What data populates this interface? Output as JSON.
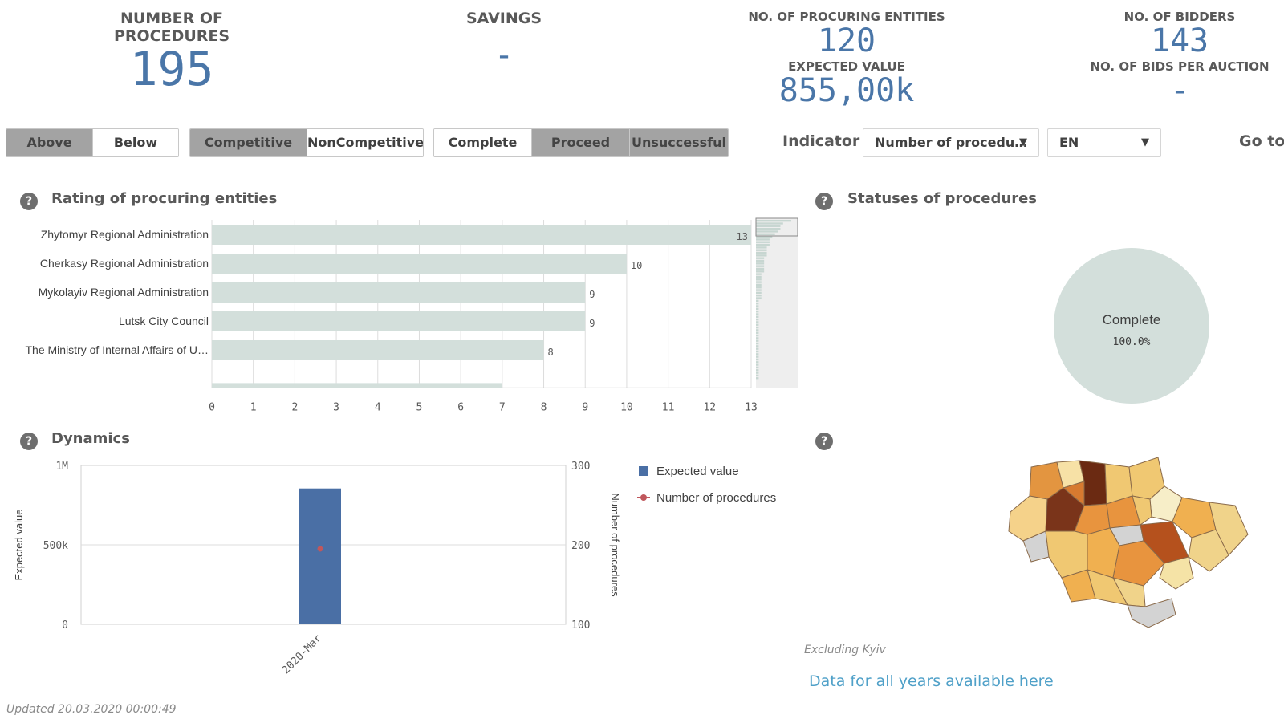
{
  "kpis": {
    "procedures": {
      "label": "NUMBER OF PROCEDURES",
      "value": "195"
    },
    "savings": {
      "label": "SAVINGS",
      "value": "-"
    },
    "entities": {
      "label": "NO. OF PROCURING ENTITIES",
      "value": "120"
    },
    "expected": {
      "label": "EXPECTED VALUE",
      "value": "855,00k"
    },
    "bidders": {
      "label": "NO. OF BIDDERS",
      "value": "143"
    },
    "bids_per_auction": {
      "label": "NO. OF BIDS PER AUCTION",
      "value": "-"
    }
  },
  "filters": {
    "threshold": [
      {
        "label": "Above",
        "selected": true
      },
      {
        "label": "Below",
        "selected": false
      }
    ],
    "competitive": [
      {
        "label": "Competitive",
        "selected": true
      },
      {
        "label": "NonCompetitive",
        "selected": false
      }
    ],
    "status": [
      {
        "label": "Complete",
        "selected": false
      },
      {
        "label": "Proceed",
        "selected": true
      },
      {
        "label": "Unsuccessful",
        "selected": true
      }
    ]
  },
  "indicator": {
    "label": "Indicator",
    "value": "Number of procedu…"
  },
  "language": {
    "value": "EN"
  },
  "goto": {
    "label": "Go to"
  },
  "help_glyph": "?",
  "rating": {
    "title": "Rating of procuring entities"
  },
  "statuses": {
    "title": "Statuses of procedures"
  },
  "dynamics": {
    "title": "Dynamics"
  },
  "map": {
    "excluding_note": "Excluding Kyiv",
    "link_text": "Data for all years available here"
  },
  "footer": {
    "updated": "Updated 20.03.2020 00:00:49"
  },
  "chart_data": [
    {
      "type": "bar",
      "orientation": "horizontal",
      "categories": [
        "Zhytomyr Regional Administration",
        "Cherkasy Regional Administration",
        "Mykolayiv Regional Administration",
        "Lutsk City Council",
        "The Ministry of Internal Affairs of U…",
        ""
      ],
      "values": [
        13,
        10,
        9,
        9,
        8,
        7
      ],
      "xlim": [
        0,
        13
      ],
      "xticks": [
        "0",
        "1",
        "2",
        "3",
        "4",
        "5",
        "6",
        "7",
        "8",
        "9",
        "10",
        "11",
        "12",
        "13"
      ],
      "bar_color": "#d3dfdb",
      "scrollbar_values": [
        13,
        10,
        9,
        9,
        8,
        7,
        6,
        5,
        5,
        5,
        4,
        4,
        4,
        4,
        3,
        3,
        3,
        3,
        3,
        3,
        2,
        2,
        2,
        2,
        2,
        2,
        2,
        2,
        2,
        2,
        1,
        1,
        1,
        1,
        1,
        1,
        1,
        1,
        1,
        1,
        1,
        1,
        1,
        1,
        1,
        1,
        1,
        1,
        1,
        1,
        1,
        1,
        1,
        1,
        1,
        1,
        1,
        1,
        1,
        1
      ]
    },
    {
      "type": "pie",
      "slices": [
        {
          "label": "Complete",
          "value": 100.0,
          "display": "100.0%"
        }
      ],
      "color": "#d3dfdb"
    },
    {
      "type": "bar",
      "categories": [
        "2020-Mar"
      ],
      "series": [
        {
          "name": "Expected value",
          "values": [
            855000
          ],
          "color": "#4a6fa5",
          "axis": "left"
        },
        {
          "name": "Number of procedures",
          "values": [
            195
          ],
          "color": "#c0575c",
          "axis": "right",
          "marker": "dot"
        }
      ],
      "ylabel": "Expected value",
      "y2label": "Number of procedures",
      "ylim": [
        0,
        1000000
      ],
      "yticks": [
        "0",
        "500k",
        "1M"
      ],
      "y2lim": [
        100,
        300
      ],
      "y2ticks": [
        "100",
        "200",
        "300"
      ],
      "legend_placement": "right"
    }
  ]
}
